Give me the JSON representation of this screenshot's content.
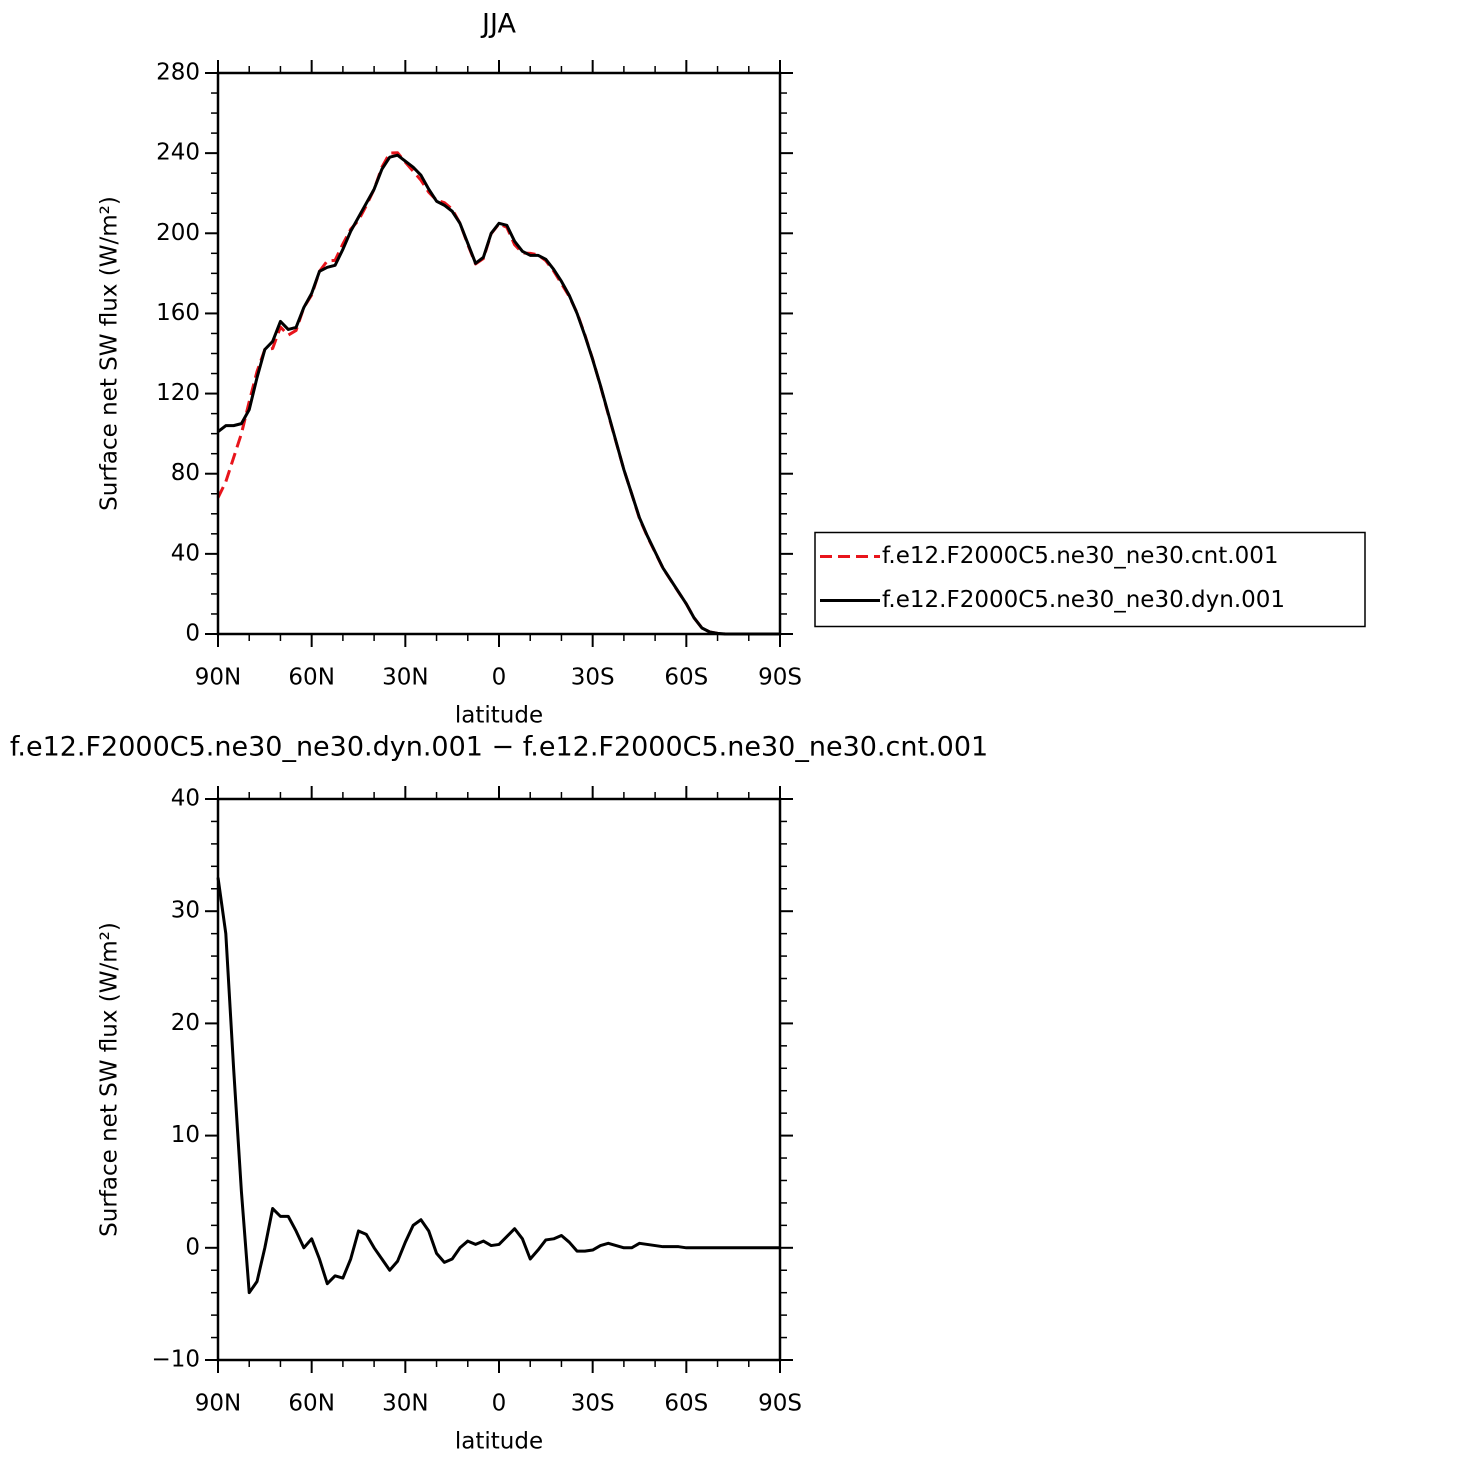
{
  "chart_data": [
    {
      "type": "line",
      "title": "JJA",
      "xlabel": "latitude",
      "ylabel": "Surface net SW flux (W/m²)",
      "x": [
        90,
        87.5,
        85,
        82.5,
        80,
        77.5,
        75,
        72.5,
        70,
        67.5,
        65,
        62.5,
        60,
        57.5,
        55,
        52.5,
        50,
        47.5,
        45,
        42.5,
        40,
        37.5,
        35,
        32.5,
        30,
        27.5,
        25,
        22.5,
        20,
        17.5,
        15,
        12.5,
        10,
        7.5,
        5,
        2.5,
        0,
        -2.5,
        -5,
        -7.5,
        -10,
        -12.5,
        -15,
        -17.5,
        -20,
        -22.5,
        -25,
        -27.5,
        -30,
        -32.5,
        -35,
        -37.5,
        -40,
        -42.5,
        -45,
        -47.5,
        -50,
        -52.5,
        -55,
        -57.5,
        -60,
        -62.5,
        -65,
        -67.5,
        -70,
        -72.5,
        -75,
        -77.5,
        -80,
        -82.5,
        -85,
        -87.5,
        -90
      ],
      "xlim": [
        90,
        -90
      ],
      "xticks": [
        {
          "value": 90,
          "label": "90N"
        },
        {
          "value": 60,
          "label": "60N"
        },
        {
          "value": 30,
          "label": "30N"
        },
        0,
        {
          "value": -30,
          "label": "30S"
        },
        {
          "value": -60,
          "label": "60S"
        },
        {
          "value": -90,
          "label": "90S"
        }
      ],
      "ylim": [
        0,
        280
      ],
      "yticks": [
        0,
        40,
        80,
        120,
        160,
        200,
        240,
        280
      ],
      "legend": "right",
      "series": [
        {
          "name": "f.e12.F2000C5.ne30_ne30.cnt.001",
          "color": "#e8141b",
          "dashed": true,
          "values": [
            68,
            76,
            88,
            100,
            116,
            131,
            142,
            142.5,
            153.2,
            149.2,
            151.5,
            163,
            169.2,
            181,
            186.2,
            186.5,
            194.7,
            202,
            206.5,
            213.8,
            222,
            233,
            240,
            240.2,
            235.5,
            231,
            226.5,
            220.5,
            216.5,
            215.3,
            212,
            205,
            194.4,
            184.7,
            187.4,
            199.8,
            204.7,
            203,
            194.3,
            190.2,
            190,
            189.2,
            186.3,
            181.2,
            174.9,
            168.5,
            160.3,
            149.3,
            137.2,
            123.8,
            109.6,
            95.8,
            82,
            70,
            57.6,
            48.7,
            40.8,
            32.9,
            26.9,
            20.9,
            15,
            8,
            3,
            1,
            0.3,
            0,
            0,
            0,
            0,
            0,
            0,
            0,
            0
          ]
        },
        {
          "name": "f.e12.F2000C5.ne30_ne30.dyn.001",
          "color": "#000000",
          "dashed": false,
          "values": [
            101,
            104,
            104,
            105,
            112,
            128,
            142,
            146,
            156,
            152,
            153,
            163,
            170,
            181,
            183,
            184,
            192,
            201,
            208,
            215,
            222,
            232,
            238,
            239,
            236,
            233,
            229,
            222,
            216,
            214,
            211,
            205,
            195,
            185,
            188,
            200,
            205,
            204,
            196,
            191,
            189,
            189,
            187,
            182,
            176,
            169,
            160,
            149,
            137,
            124,
            110,
            96,
            82,
            70,
            58,
            49,
            41,
            33,
            27,
            21,
            15,
            8,
            3,
            1,
            0.3,
            0,
            0,
            0,
            0,
            0,
            0,
            0,
            0
          ]
        }
      ]
    },
    {
      "type": "line",
      "title": "f.e12.F2000C5.ne30_ne30.dyn.001 − f.e12.F2000C5.ne30_ne30.cnt.001",
      "xlabel": "latitude",
      "ylabel": "Surface net SW flux (W/m²)",
      "x": [
        90,
        87.5,
        85,
        82.5,
        80,
        77.5,
        75,
        72.5,
        70,
        67.5,
        65,
        62.5,
        60,
        57.5,
        55,
        52.5,
        50,
        47.5,
        45,
        42.5,
        40,
        37.5,
        35,
        32.5,
        30,
        27.5,
        25,
        22.5,
        20,
        17.5,
        15,
        12.5,
        10,
        7.5,
        5,
        2.5,
        0,
        -2.5,
        -5,
        -7.5,
        -10,
        -12.5,
        -15,
        -17.5,
        -20,
        -22.5,
        -25,
        -27.5,
        -30,
        -32.5,
        -35,
        -37.5,
        -40,
        -42.5,
        -45,
        -47.5,
        -50,
        -52.5,
        -55,
        -57.5,
        -60,
        -62.5,
        -65,
        -67.5,
        -70,
        -72.5,
        -75,
        -77.5,
        -80,
        -82.5,
        -85,
        -87.5,
        -90
      ],
      "xlim": [
        90,
        -90
      ],
      "xticks": [
        {
          "value": 90,
          "label": "90N"
        },
        {
          "value": 60,
          "label": "60N"
        },
        {
          "value": 30,
          "label": "30N"
        },
        0,
        {
          "value": -30,
          "label": "30S"
        },
        {
          "value": -60,
          "label": "60S"
        },
        {
          "value": -90,
          "label": "90S"
        }
      ],
      "ylim": [
        -10,
        40
      ],
      "yticks": [
        {
          "value": -10,
          "label": "−10"
        },
        0,
        10,
        20,
        30,
        40
      ],
      "series": [
        {
          "color": "#000000",
          "dashed": false,
          "values": [
            33,
            28,
            16,
            5,
            -4,
            -3,
            0,
            3.5,
            2.8,
            2.8,
            1.5,
            0,
            0.8,
            -1,
            -3.2,
            -2.5,
            -2.7,
            -1,
            1.5,
            1.2,
            0,
            -1,
            -2,
            -1.2,
            0.5,
            2,
            2.5,
            1.5,
            -0.5,
            -1.3,
            -1,
            0,
            0.6,
            0.3,
            0.6,
            0.2,
            0.3,
            1,
            1.7,
            0.8,
            -1,
            -0.2,
            0.7,
            0.8,
            1.1,
            0.5,
            -0.3,
            -0.3,
            -0.2,
            0.2,
            0.4,
            0.2,
            0,
            0,
            0.4,
            0.3,
            0.2,
            0.1,
            0.1,
            0.1,
            0,
            0,
            0,
            0,
            0,
            0,
            0,
            0,
            0,
            0,
            0,
            0,
            0
          ]
        }
      ]
    }
  ]
}
